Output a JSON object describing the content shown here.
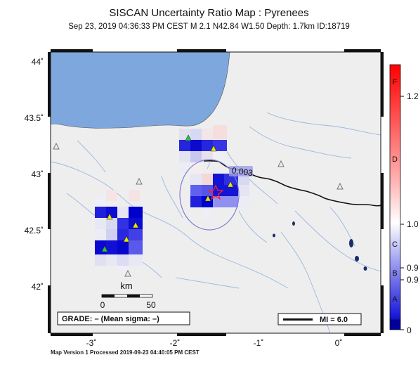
{
  "title": "SISCAN Uncertainty Ratio Map : Pyrenees",
  "subtitle": "Sep 23, 2019 04:36:33 PM CEST   M 2.1   N42.84 W1.50   Depth: 1.7km   ID:18719",
  "footer": "Map Version 1 Processed 2019-09-23 04:40:05 PM CEST",
  "axes": {
    "x_ticks": [
      {
        "value": -3,
        "label": "-3˚"
      },
      {
        "value": -2,
        "label": "-2˚"
      },
      {
        "value": -1,
        "label": "-1˚"
      },
      {
        "value": 0,
        "label": "0˚"
      }
    ],
    "y_ticks": [
      {
        "value": 44,
        "label": "44˚"
      },
      {
        "value": 43.5,
        "label": "43.5˚"
      },
      {
        "value": 43,
        "label": "43˚"
      },
      {
        "value": 42.5,
        "label": "42.5˚"
      },
      {
        "value": 42,
        "label": "42˚"
      }
    ],
    "lon_range": [
      -3.45,
      0.5
    ],
    "lat_range": [
      41.6,
      44.1
    ]
  },
  "scale_bar": {
    "unit": "km",
    "min_label": "0",
    "max_label": "50"
  },
  "grade_box": {
    "text": "GRADE: – (Mean sigma: –)"
  },
  "legend_box": {
    "text": "MI = 6.0"
  },
  "contour_label": "0.003",
  "colorbar": {
    "grades": [
      "F",
      "D",
      "C",
      "B",
      "A"
    ],
    "values": [
      "1.2",
      "1.0",
      "0.9",
      "0.9",
      "0"
    ],
    "colors": {
      "high": "#ff0000",
      "mid": "#ffffff",
      "low": "#1010d0",
      "bottom": "#0000a0"
    }
  },
  "epicenter": {
    "lon": -1.5,
    "lat": 42.84
  },
  "colors": {
    "ocean": "#7ea7de",
    "land": "#eeeeee",
    "border": "#111111",
    "river": "#9ab8e0",
    "station": "#e8e800"
  }
}
